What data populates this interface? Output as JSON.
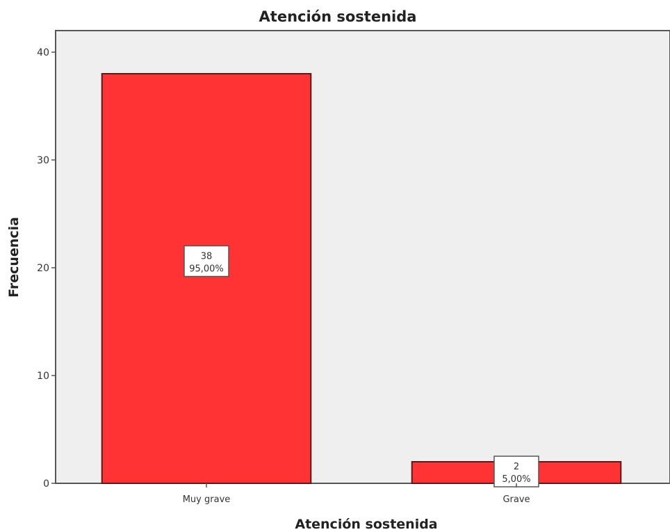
{
  "chart_data": {
    "type": "bar",
    "title": "Atención sostenida",
    "xlabel": "Atención sostenida",
    "ylabel": "Frecuencia",
    "categories": [
      "Muy grave",
      "Grave"
    ],
    "values": [
      38,
      2
    ],
    "data_labels": [
      {
        "count": "38",
        "percent": "95,00%"
      },
      {
        "count": "2",
        "percent": "5,00%"
      }
    ],
    "ylim": [
      0,
      42
    ],
    "yticks": [
      0,
      10,
      20,
      30,
      40
    ],
    "grid": false,
    "colors": {
      "bar_fill": "#ff3333",
      "bar_stroke": "#5a1a1a",
      "plot_background": "#efefef",
      "axis": "#555555"
    }
  }
}
